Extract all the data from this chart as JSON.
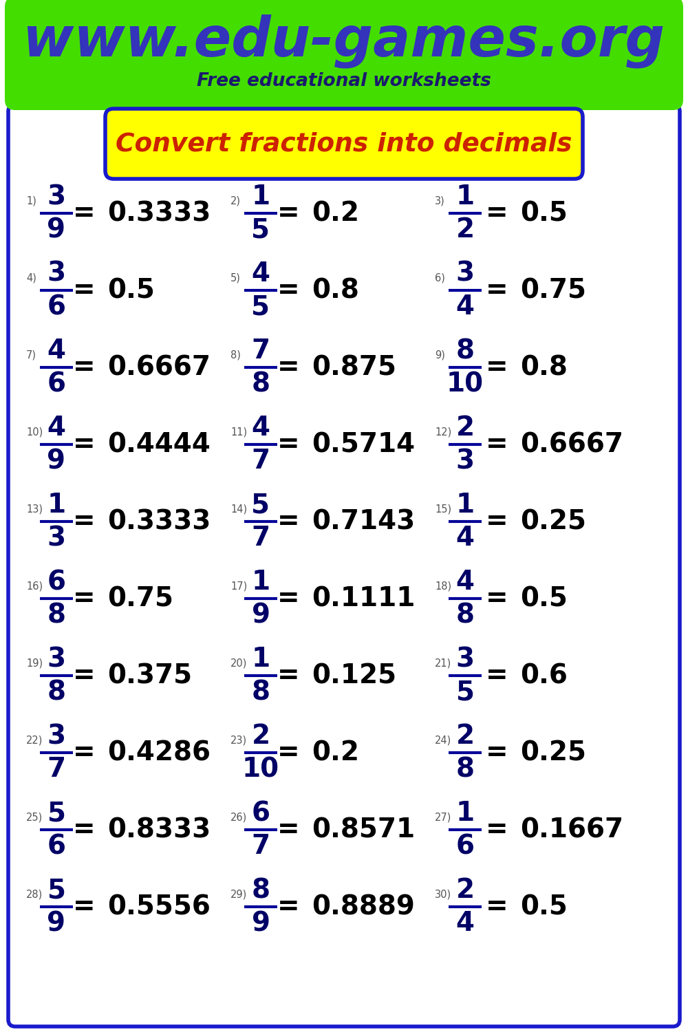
{
  "title_url": "www.edu-games.org",
  "subtitle": "Free educational worksheets",
  "worksheet_title": "Convert fractions into decimals",
  "header_bg": "#44dd00",
  "header_text_color": "#3333bb",
  "subtitle_color": "#1a1a6e",
  "worksheet_title_bg": "#ffff00",
  "worksheet_title_border": "#1a1acc",
  "worksheet_title_text": "#cc2200",
  "border_color": "#1a1acc",
  "frac_color": "#000066",
  "bar_color": "#000099",
  "dec_color": "#000000",
  "num_label_color": "#555555",
  "problems": [
    {
      "num": 1,
      "numer": "3",
      "denom": "9",
      "decimal": "0.3333"
    },
    {
      "num": 2,
      "numer": "1",
      "denom": "5",
      "decimal": "0.2"
    },
    {
      "num": 3,
      "numer": "1",
      "denom": "2",
      "decimal": "0.5"
    },
    {
      "num": 4,
      "numer": "3",
      "denom": "6",
      "decimal": "0.5"
    },
    {
      "num": 5,
      "numer": "4",
      "denom": "5",
      "decimal": "0.8"
    },
    {
      "num": 6,
      "numer": "3",
      "denom": "4",
      "decimal": "0.75"
    },
    {
      "num": 7,
      "numer": "4",
      "denom": "6",
      "decimal": "0.6667"
    },
    {
      "num": 8,
      "numer": "7",
      "denom": "8",
      "decimal": "0.875"
    },
    {
      "num": 9,
      "numer": "8",
      "denom": "10",
      "decimal": "0.8"
    },
    {
      "num": 10,
      "numer": "4",
      "denom": "9",
      "decimal": "0.4444"
    },
    {
      "num": 11,
      "numer": "4",
      "denom": "7",
      "decimal": "0.5714"
    },
    {
      "num": 12,
      "numer": "2",
      "denom": "3",
      "decimal": "0.6667"
    },
    {
      "num": 13,
      "numer": "1",
      "denom": "3",
      "decimal": "0.3333"
    },
    {
      "num": 14,
      "numer": "5",
      "denom": "7",
      "decimal": "0.7143"
    },
    {
      "num": 15,
      "numer": "1",
      "denom": "4",
      "decimal": "0.25"
    },
    {
      "num": 16,
      "numer": "6",
      "denom": "8",
      "decimal": "0.75"
    },
    {
      "num": 17,
      "numer": "1",
      "denom": "9",
      "decimal": "0.1111"
    },
    {
      "num": 18,
      "numer": "4",
      "denom": "8",
      "decimal": "0.5"
    },
    {
      "num": 19,
      "numer": "3",
      "denom": "8",
      "decimal": "0.375"
    },
    {
      "num": 20,
      "numer": "1",
      "denom": "8",
      "decimal": "0.125"
    },
    {
      "num": 21,
      "numer": "3",
      "denom": "5",
      "decimal": "0.6"
    },
    {
      "num": 22,
      "numer": "3",
      "denom": "7",
      "decimal": "0.4286"
    },
    {
      "num": 23,
      "numer": "2",
      "denom": "10",
      "decimal": "0.2"
    },
    {
      "num": 24,
      "numer": "2",
      "denom": "8",
      "decimal": "0.25"
    },
    {
      "num": 25,
      "numer": "5",
      "denom": "6",
      "decimal": "0.8333"
    },
    {
      "num": 26,
      "numer": "6",
      "denom": "7",
      "decimal": "0.8571"
    },
    {
      "num": 27,
      "numer": "1",
      "denom": "6",
      "decimal": "0.1667"
    },
    {
      "num": 28,
      "numer": "5",
      "denom": "9",
      "decimal": "0.5556"
    },
    {
      "num": 29,
      "numer": "8",
      "denom": "9",
      "decimal": "0.8889"
    },
    {
      "num": 30,
      "numer": "2",
      "denom": "4",
      "decimal": "0.5"
    }
  ]
}
